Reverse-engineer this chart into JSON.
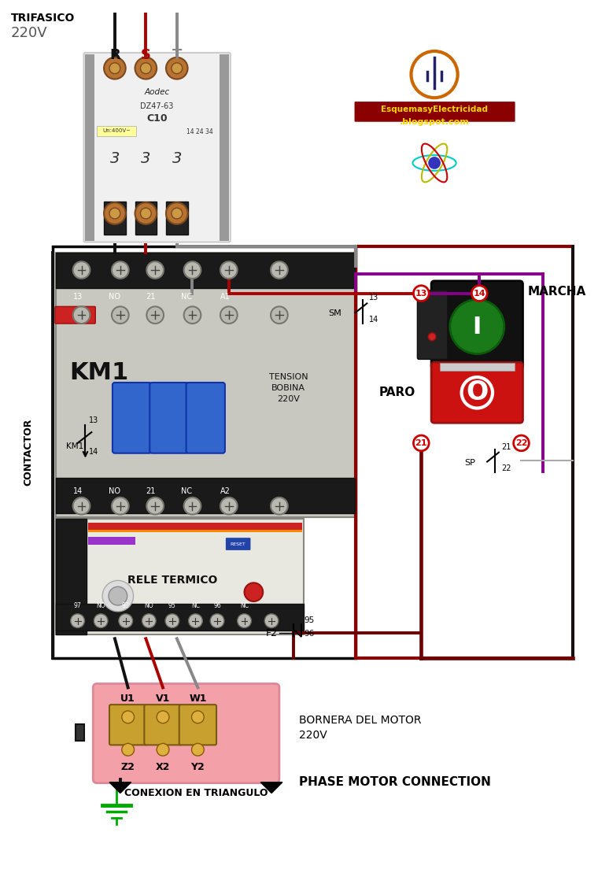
{
  "bg_color": "#ffffff",
  "trifasico_line1": "TRIFASICO",
  "trifasico_line2": "220V",
  "phases": [
    "R",
    "S",
    "T"
  ],
  "phase_colors": [
    "#111111",
    "#aa0000",
    "#888888"
  ],
  "wire_black": "#111111",
  "wire_red": "#aa0000",
  "wire_gray": "#888888",
  "wire_purple": "#880088",
  "wire_darkred": "#6B0000",
  "contactor_label": "CONTACTOR",
  "km1_label": "KM1",
  "tension_label": "TENSION\nBOBINA\n220V",
  "rele_label": "RELE TERMICO",
  "bornera_label1": "BORNERA DEL MOTOR",
  "bornera_label2": "220V",
  "conexion_label": "CONEXION EN TRIANGULO",
  "phase_motor": "PHASE MOTOR CONNECTION",
  "marcha_label": "MARCHA",
  "paro_label": "PARO",
  "green_btn": "#1a7a1a",
  "red_btn": "#cc1111",
  "ground_color": "#00aa00",
  "num_color": "#cc0000",
  "logo_orange": "#cc6600",
  "logo_text_bg": "#8B0000",
  "logo_text_color": "#FFD700",
  "contactor_top_bg": "#cccccc",
  "contactor_body_bg": "#cccccc",
  "rele_body_bg": "#e0e0e0",
  "bornera_pink": "#f4a0a8",
  "terminal_gold": "#b8860b"
}
